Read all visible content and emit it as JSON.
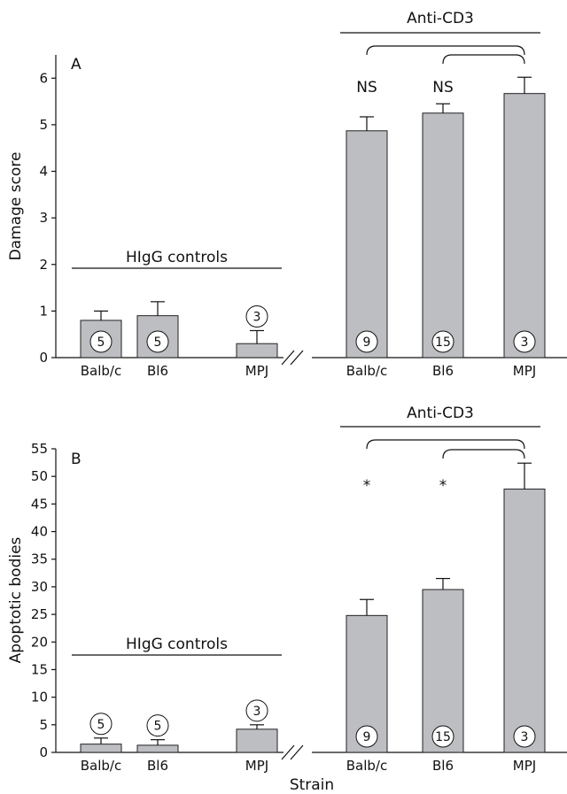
{
  "chart_data": [
    {
      "type": "bar",
      "panel_label": "A",
      "ylabel": "Damage score",
      "ylim": [
        0,
        6.5
      ],
      "yticks": [
        0,
        1,
        2,
        3,
        4,
        5,
        6
      ],
      "groups": [
        {
          "name": "HIgG controls",
          "categories": [
            "Balb/c",
            "Bl6",
            "MPJ"
          ],
          "values": [
            0.8,
            0.9,
            0.3
          ],
          "errors": [
            0.2,
            0.3,
            0.28
          ],
          "n": [
            "5",
            "5",
            "3"
          ]
        },
        {
          "name": "Anti-CD3",
          "categories": [
            "Balb/c",
            "Bl6",
            "MPJ"
          ],
          "values": [
            4.87,
            5.25,
            5.67
          ],
          "errors": [
            0.3,
            0.2,
            0.35
          ],
          "n": [
            "9",
            "15",
            "3"
          ],
          "significance": [
            "NS",
            "NS",
            ""
          ]
        }
      ]
    },
    {
      "type": "bar",
      "panel_label": "B",
      "ylabel": "Apoptotic bodies",
      "xlabel": "Strain",
      "ylim": [
        0,
        55
      ],
      "yticks": [
        0,
        5,
        10,
        15,
        20,
        25,
        30,
        35,
        40,
        45,
        50,
        55
      ],
      "groups": [
        {
          "name": "HIgG controls",
          "categories": [
            "Balb/c",
            "Bl6",
            "MPJ"
          ],
          "values": [
            1.5,
            1.3,
            4.2
          ],
          "errors": [
            1.1,
            1.0,
            0.8
          ],
          "n": [
            "5",
            "5",
            "3"
          ]
        },
        {
          "name": "Anti-CD3",
          "categories": [
            "Balb/c",
            "Bl6",
            "MPJ"
          ],
          "values": [
            24.8,
            29.5,
            47.7
          ],
          "errors": [
            2.9,
            2.0,
            4.7
          ],
          "n": [
            "9",
            "15",
            "3"
          ],
          "significance": [
            "*",
            "*",
            ""
          ]
        }
      ]
    }
  ]
}
